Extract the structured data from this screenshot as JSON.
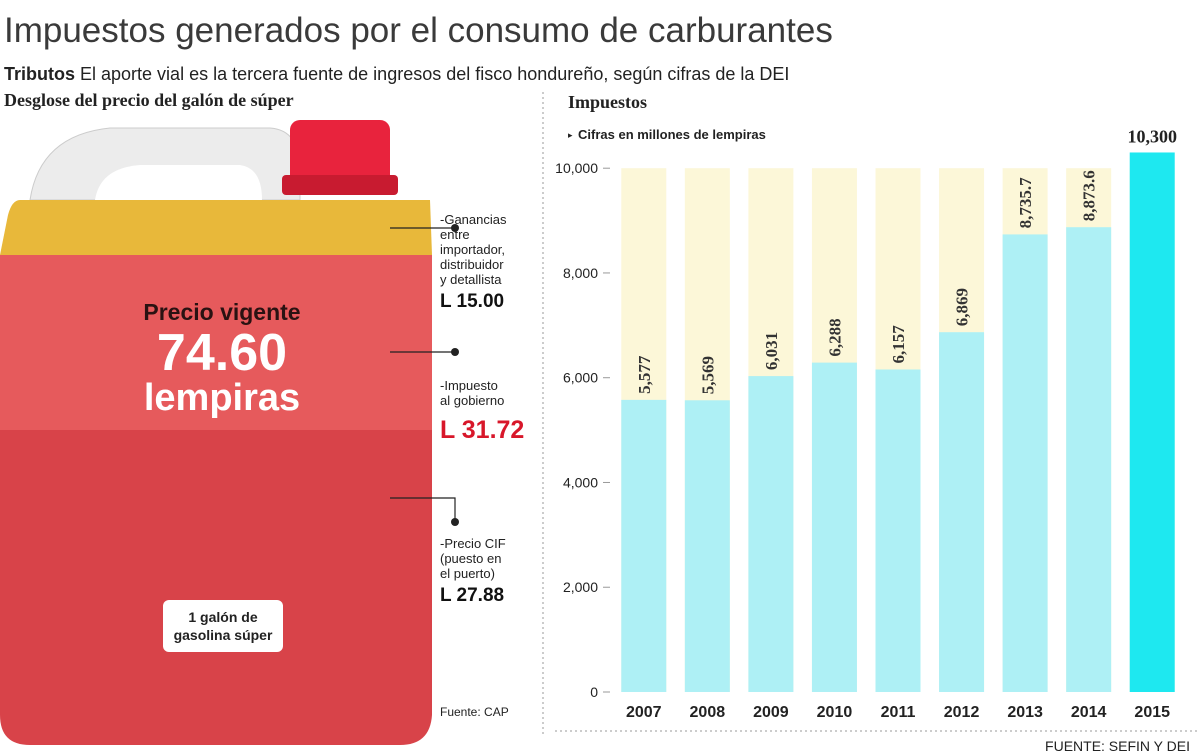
{
  "header": {
    "title": "Impuestos generados por el consumo de carburantes",
    "subtitle_lead": "Tributos",
    "subtitle": "El aporte vial es la tercera fuente de ingresos del fisco hondureño, según cifras de la DEI"
  },
  "breakdown": {
    "heading": "Desglose del precio del galón de súper",
    "price_label": "Precio vigente",
    "price": "74.60",
    "price_unit": "lempiras",
    "jug_label": [
      "1 galón de",
      "gasolina súper"
    ],
    "items": [
      {
        "lines": [
          "-Ganancias",
          "entre",
          "importador,",
          "distribuidor",
          "y detallista"
        ],
        "amount": "L 15.00"
      },
      {
        "lines": [
          "-Impuesto",
          "al gobierno"
        ],
        "amount": "L 31.72"
      },
      {
        "lines": [
          "-Precio CIF",
          "(puesto en",
          "el puerto)"
        ],
        "amount": "L 27.88"
      }
    ],
    "source": "Fuente: CAP"
  },
  "chart_data": {
    "type": "bar",
    "title": "Impuestos",
    "subtitle": "Cifras en millones de lempiras",
    "categories": [
      "2007",
      "2008",
      "2009",
      "2010",
      "2011",
      "2012",
      "2013",
      "2014",
      "2015"
    ],
    "values": [
      5577,
      5569,
      6031,
      6288,
      6157,
      6869,
      8735.7,
      8873.6,
      10300
    ],
    "value_labels": [
      "5,577",
      "5,569",
      "6,031",
      "6,288",
      "6,157",
      "6,869",
      "8,735.7",
      "8,873.6",
      "10,300"
    ],
    "colors": [
      "#aef0f5",
      "#aef0f5",
      "#aef0f5",
      "#aef0f5",
      "#aef0f5",
      "#aef0f5",
      "#aef0f5",
      "#aef0f5",
      "#1ee8f0"
    ],
    "background_color": "#fcf7d8",
    "ylim": [
      0,
      10500
    ],
    "yticks": [
      0,
      {
        "value": 2000,
        "label": "2,000"
      },
      {
        "value": 4000,
        "label": "4,000"
      },
      {
        "value": 6000,
        "label": "6,000"
      },
      {
        "value": 8000,
        "label": "8,000"
      },
      {
        "value": 10000,
        "label": "10,000"
      }
    ],
    "source": "FUENTE: SEFIN Y DEI"
  }
}
